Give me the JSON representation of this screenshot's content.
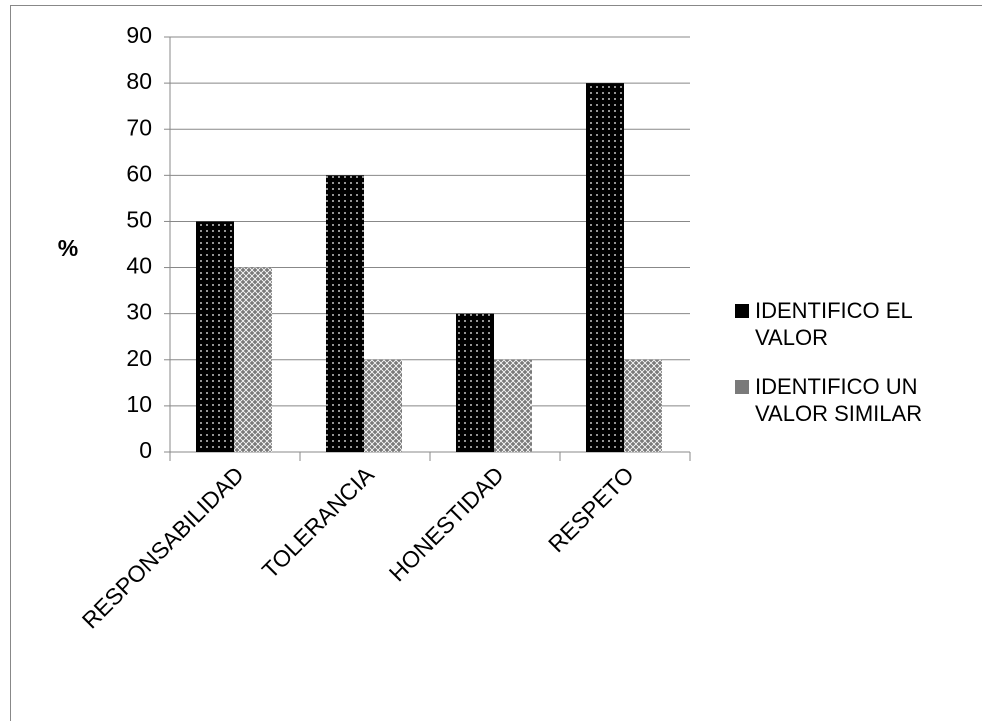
{
  "chart_data": {
    "type": "bar",
    "y_label": "%",
    "categories": [
      "RESPONSABILIDAD",
      "TOLERANCIA",
      "HONESTIDAD",
      "RESPETO"
    ],
    "series": [
      {
        "name": "IDENTIFICO EL VALOR",
        "color": "#000000",
        "values": [
          50,
          60,
          30,
          80
        ]
      },
      {
        "name": "IDENTIFICO UN VALOR SIMILAR",
        "color": "#7a7a7a",
        "values": [
          40,
          20,
          20,
          20
        ]
      }
    ],
    "ylim": [
      0,
      90
    ],
    "yticks": [
      0,
      10,
      20,
      30,
      40,
      50,
      60,
      70,
      80,
      90
    ],
    "grid": true
  }
}
